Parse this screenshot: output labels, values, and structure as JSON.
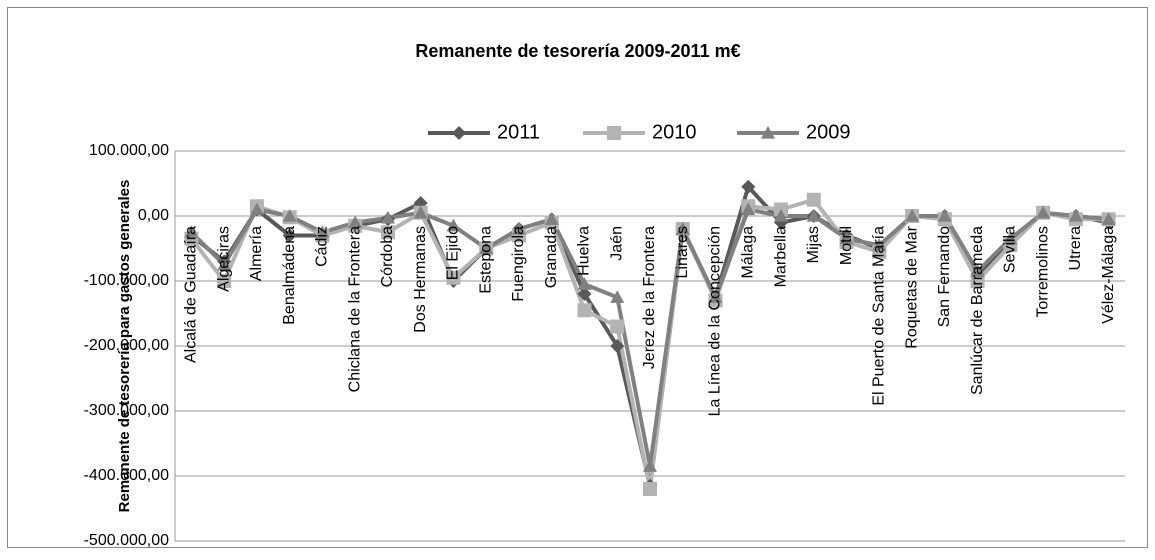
{
  "chart_data": {
    "type": "line",
    "title": "Remanente de tesorería 2009-2011 m€",
    "y_label": "Remanente de tesorería para gastos generales",
    "categories": [
      "Alcalá de Guadaíra",
      "Algeciras",
      "Almería",
      "Benalmádena",
      "Cádiz",
      "Chiclana de la Frontera",
      "Córdoba",
      "Dos Hermanas",
      "El Ejido",
      "Estepona",
      "Fuengirola",
      "Granada",
      "Huelva",
      "Jaén",
      "Jerez de la Frontera",
      "Linares",
      "La Línea de la Concepción",
      "Málaga",
      "Marbella",
      "Mijas",
      "Motril",
      "El Puerto de Santa María",
      "Roquetas de Mar",
      "San Fernando",
      "Sanlúcar de Barrameda",
      "Sevilla",
      "Torremolinos",
      "Utrera",
      "Vélez-Málaga"
    ],
    "series": [
      {
        "name": "2011",
        "color": "#595959",
        "marker": "diamond",
        "values": [
          -30000,
          -70000,
          10000,
          -30000,
          -30000,
          -15000,
          -5000,
          20000,
          -100000,
          -50000,
          -20000,
          -5000,
          -120000,
          -200000,
          -415000,
          -22000,
          -125000,
          45000,
          -10000,
          0,
          -30000,
          -50000,
          0,
          0,
          -90000,
          -40000,
          5000,
          0,
          -10000
        ]
      },
      {
        "name": "2010",
        "color": "#b3b3b3",
        "marker": "square",
        "values": [
          -35000,
          -100000,
          15000,
          -2000,
          -30000,
          -15000,
          -25000,
          5000,
          -95000,
          -50000,
          -30000,
          -10000,
          -145000,
          -170000,
          -420000,
          -20000,
          -130000,
          15000,
          10000,
          25000,
          -40000,
          -55000,
          0,
          -5000,
          -100000,
          -45000,
          5000,
          -5000,
          -5000
        ]
      },
      {
        "name": "2009",
        "color": "#808080",
        "marker": "triangle",
        "values": [
          -25000,
          -75000,
          10000,
          0,
          -25000,
          -10000,
          -3000,
          5000,
          -15000,
          -50000,
          -20000,
          -5000,
          -105000,
          -125000,
          -385000,
          -20000,
          -125000,
          10000,
          0,
          0,
          -35000,
          -45000,
          0,
          0,
          -85000,
          -35000,
          5000,
          0,
          -5000
        ]
      }
    ],
    "ylim": [
      -500000,
      100000
    ],
    "yticks": [
      {
        "value": -500000,
        "label": "-500.000,00"
      },
      {
        "value": -400000,
        "label": "-400.000,00"
      },
      {
        "value": -300000,
        "label": "-300.000,00"
      },
      {
        "value": -200000,
        "label": "-200.000,00"
      },
      {
        "value": -100000,
        "label": "-100.000,00"
      },
      {
        "value": 0,
        "label": "0,00"
      },
      {
        "value": 100000,
        "label": "100.000,00"
      }
    ],
    "grid": true,
    "legend": "top"
  }
}
